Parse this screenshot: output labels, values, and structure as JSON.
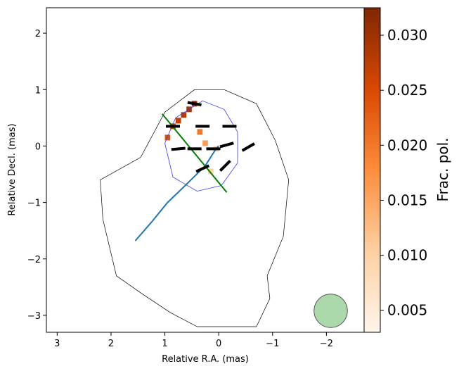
{
  "chart_data": {
    "type": "heatmap",
    "title": "",
    "xlabel": "Relative R.A. (mas)",
    "ylabel": "Relative Decl. (mas)",
    "xlim": [
      3.2,
      -2.7
    ],
    "ylim": [
      -3.3,
      2.45
    ],
    "x_ticks": [
      3,
      2,
      1,
      0,
      -1,
      -2
    ],
    "x_tick_labels": [
      "3",
      "2",
      "1",
      "0",
      "−1",
      "−2"
    ],
    "y_ticks": [
      2,
      1,
      0,
      -1,
      -2,
      -3
    ],
    "y_tick_labels": [
      "2",
      "1",
      "0",
      "−1",
      "−2",
      "−3"
    ],
    "grid": false,
    "colorbar": {
      "label": "Frac. pol.",
      "range": [
        0.003,
        0.0325
      ],
      "ticks": [
        0.005,
        0.01,
        0.015,
        0.02,
        0.025,
        0.03
      ],
      "tick_labels": [
        "0.005",
        "0.010",
        "0.015",
        "0.020",
        "0.025",
        "0.030"
      ],
      "colormap": "Oranges",
      "colors": [
        "#fff5eb",
        "#fdd0a2",
        "#fd8d3c",
        "#d94801",
        "#7f2704"
      ]
    },
    "fractional_polarization_pixels": {
      "pixel_size_mas": 0.1,
      "values": [
        {
          "x": 0.45,
          "y": 0.75,
          "v": 0.03
        },
        {
          "x": 0.55,
          "y": 0.65,
          "v": 0.029
        },
        {
          "x": 0.65,
          "y": 0.55,
          "v": 0.028
        },
        {
          "x": 0.75,
          "y": 0.45,
          "v": 0.027
        },
        {
          "x": 0.85,
          "y": 0.35,
          "v": 0.026
        },
        {
          "x": 0.95,
          "y": 0.15,
          "v": 0.024
        },
        {
          "x": 0.35,
          "y": 0.25,
          "v": 0.02
        },
        {
          "x": 0.25,
          "y": 0.05,
          "v": 0.016
        },
        {
          "x": 0.05,
          "y": -0.05,
          "v": 0.009
        },
        {
          "x": 0.15,
          "y": -0.45,
          "v": 0.01
        }
      ]
    },
    "total_intensity_contours": [
      {
        "level": "lowest",
        "color": "#000000",
        "points": [
          [
            0.45,
            1.0
          ],
          [
            1.0,
            0.6
          ],
          [
            1.45,
            -0.2
          ],
          [
            2.2,
            -0.6
          ],
          [
            2.15,
            -1.3
          ],
          [
            1.9,
            -2.3
          ],
          [
            1.45,
            -2.6
          ],
          [
            0.9,
            -2.95
          ],
          [
            0.4,
            -3.2
          ],
          [
            -0.7,
            -3.2
          ],
          [
            -0.95,
            -2.7
          ],
          [
            -0.9,
            -2.3
          ],
          [
            -1.2,
            -1.6
          ],
          [
            -1.3,
            -0.6
          ],
          [
            -1.05,
            0.1
          ],
          [
            -0.7,
            0.75
          ],
          [
            -0.1,
            1.0
          ]
        ]
      },
      {
        "level": "inner",
        "color": "#3a3aff",
        "points": [
          [
            0.3,
            0.8
          ],
          [
            0.8,
            0.5
          ],
          [
            1.0,
            0.05
          ],
          [
            0.85,
            -0.55
          ],
          [
            0.4,
            -0.8
          ],
          [
            -0.05,
            -0.7
          ],
          [
            -0.35,
            -0.3
          ],
          [
            -0.35,
            0.25
          ],
          [
            -0.1,
            0.65
          ]
        ]
      }
    ],
    "evpa_vectors": [
      {
        "x": 0.45,
        "y": 0.75,
        "angle_deg": -10
      },
      {
        "x": 0.85,
        "y": 0.35,
        "angle_deg": 0
      },
      {
        "x": 0.3,
        "y": 0.35,
        "angle_deg": 0
      },
      {
        "x": -0.2,
        "y": 0.35,
        "angle_deg": 0
      },
      {
        "x": 0.75,
        "y": -0.05,
        "angle_deg": 5
      },
      {
        "x": 0.45,
        "y": -0.05,
        "angle_deg": 0
      },
      {
        "x": 0.1,
        "y": -0.05,
        "angle_deg": 0
      },
      {
        "x": -0.15,
        "y": 0.02,
        "angle_deg": 15
      },
      {
        "x": -0.55,
        "y": -0.02,
        "angle_deg": 30
      },
      {
        "x": 0.3,
        "y": -0.4,
        "angle_deg": 25
      },
      {
        "x": -0.12,
        "y": -0.35,
        "angle_deg": 45
      }
    ],
    "jet_ridge_line": {
      "color": "#1f77b4",
      "x": [
        1.55,
        1.25,
        0.95,
        0.6,
        0.25,
        0.05,
        0.0
      ],
      "y": [
        -1.68,
        -1.35,
        -1.0,
        -0.68,
        -0.35,
        -0.05,
        0.0
      ]
    },
    "transverse_cut_line": {
      "color": "#008000",
      "x": [
        1.05,
        -0.15
      ],
      "y": [
        0.57,
        -0.82
      ]
    },
    "beam": {
      "x": -2.08,
      "y": -2.92,
      "diameter_mas": 0.62,
      "color": "#2ca02c"
    }
  }
}
